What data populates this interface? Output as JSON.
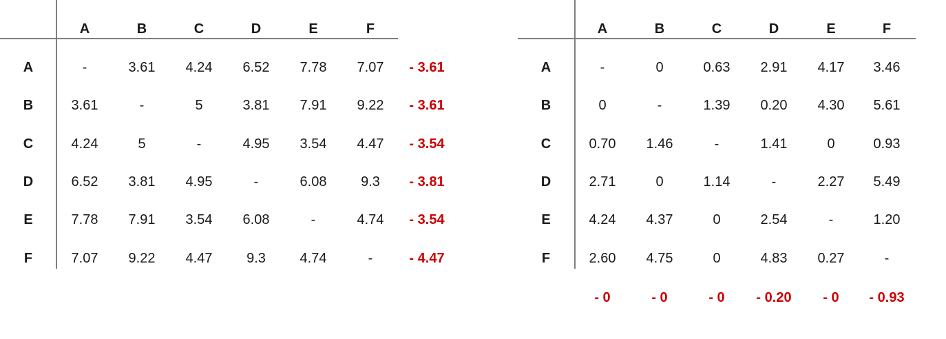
{
  "left_matrix": {
    "column_headers": [
      "A",
      "B",
      "C",
      "D",
      "E",
      "F"
    ],
    "row_headers": [
      "A",
      "B",
      "C",
      "D",
      "E",
      "F"
    ],
    "rows": [
      [
        "-",
        "3.61",
        "4.24",
        "6.52",
        "7.78",
        "7.07"
      ],
      [
        "3.61",
        "-",
        "5",
        "3.81",
        "7.91",
        "9.22"
      ],
      [
        "4.24",
        "5",
        "-",
        "4.95",
        "3.54",
        "4.47"
      ],
      [
        "6.52",
        "3.81",
        "4.95",
        "-",
        "6.08",
        "9.3"
      ],
      [
        "7.78",
        "7.91",
        "3.54",
        "6.08",
        "-",
        "4.74"
      ],
      [
        "7.07",
        "9.22",
        "4.47",
        "9.3",
        "4.74",
        "-"
      ]
    ],
    "row_reductions": [
      "- 3.61",
      "- 3.61",
      "- 3.54",
      "- 3.81",
      "- 3.54",
      "- 4.47"
    ]
  },
  "right_matrix": {
    "column_headers": [
      "A",
      "B",
      "C",
      "D",
      "E",
      "F"
    ],
    "row_headers": [
      "A",
      "B",
      "C",
      "D",
      "E",
      "F"
    ],
    "rows": [
      [
        "-",
        "0",
        "0.63",
        "2.91",
        "4.17",
        "3.46"
      ],
      [
        "0",
        "-",
        "1.39",
        "0.20",
        "4.30",
        "5.61"
      ],
      [
        "0.70",
        "1.46",
        "-",
        "1.41",
        "0",
        "0.93"
      ],
      [
        "2.71",
        "0",
        "1.14",
        "-",
        "2.27",
        "5.49"
      ],
      [
        "4.24",
        "4.37",
        "0",
        "2.54",
        "-",
        "1.20"
      ],
      [
        "2.60",
        "4.75",
        "0",
        "4.83",
        "0.27",
        "-"
      ]
    ],
    "column_reductions": [
      "- 0",
      "- 0",
      "- 0",
      "- 0.20",
      "- 0",
      "- 0.93"
    ]
  },
  "colors": {
    "text": "#1a1a1a",
    "reduction": "#cc0000",
    "rule": "#7f7f7f"
  }
}
